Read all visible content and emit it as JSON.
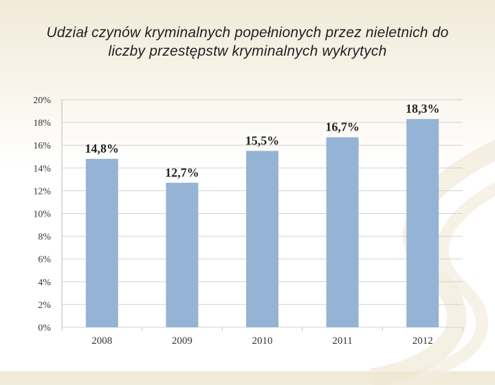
{
  "slide": {
    "title": "Udział czynów kryminalnych popełnionych przez nieletnich do liczby przestępstw kryminalnych wykrytych"
  },
  "chart_data": {
    "type": "bar",
    "title": "",
    "xlabel": "",
    "ylabel": "",
    "categories": [
      "2008",
      "2009",
      "2010",
      "2011",
      "2012"
    ],
    "values": [
      14.8,
      12.7,
      15.5,
      16.7,
      18.3
    ],
    "data_labels": [
      "14,8%",
      "12,7%",
      "15,5%",
      "16,7%",
      "18,3%"
    ],
    "ylim": [
      0,
      20
    ],
    "y_ticks": [
      0,
      2,
      4,
      6,
      8,
      10,
      12,
      14,
      16,
      18,
      20
    ],
    "y_tick_labels": [
      "0%",
      "2%",
      "4%",
      "6%",
      "8%",
      "10%",
      "12%",
      "14%",
      "16%",
      "18%",
      "20%"
    ],
    "grid": true,
    "legend": "none",
    "bar_color": "#95b3d4",
    "grid_color": "#d0d0d0"
  }
}
